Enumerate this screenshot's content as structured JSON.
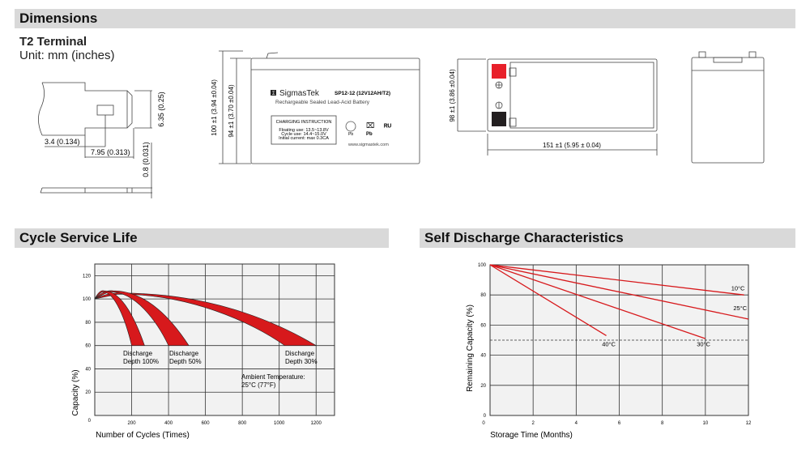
{
  "sections": {
    "dimensions": "Dimensions",
    "cycle": "Cycle Service Life",
    "self_discharge": "Self Discharge Characteristics"
  },
  "terminal": {
    "title": "T2 Terminal",
    "unit": "Unit: mm (inches)",
    "dim_635": "6.35 (0.25)",
    "dim_34": "3.4 (0.134)",
    "dim_795": "7.95 (0.313)",
    "dim_08": "0.8 (0.031)"
  },
  "battery_front": {
    "dim_100": "100 ±1 (3.94 ±0.04)",
    "dim_94": "94 ±1 (3.70 ±0.04)",
    "brand": "SigmasTek",
    "model": "SP12-12 (12V12AH/T2)",
    "subtitle": "Rechargeable Sealed Lead-Acid Battery",
    "charging_title": "CHARGING INSTRUCTION",
    "floating": "Floating use: 13.5~13.8V",
    "cycle_use": "Cycle use: 14.4~15.0V",
    "initial": "Initial current: max 0.3CA",
    "website": "www.sigmastek.com",
    "pb1": "Pb",
    "pb2": "Pb"
  },
  "battery_top": {
    "dim_98": "98 ±1 (3.86 ±0.04)",
    "dim_151": "151 ±1 (5.95 ± 0.04)",
    "positive_color": "#e8202a",
    "negative_color": "#231f20"
  },
  "chart_data": [
    {
      "type": "area",
      "title": "Cycle Service Life",
      "xlabel": "Number of Cycles (Times)",
      "ylabel": "Capacity (%)",
      "xticks": [
        "200",
        "400",
        "600",
        "800",
        "1000",
        "1200"
      ],
      "yticks": [
        "0",
        "20",
        "40",
        "60",
        "80",
        "100",
        "120"
      ],
      "xlim": [
        0,
        1300
      ],
      "ylim": [
        0,
        130
      ],
      "grid": true,
      "series": [
        {
          "name": "Discharge Depth 100%",
          "label": [
            "Discharge",
            "Depth 100%"
          ],
          "start": [
            0,
            100
          ],
          "peak": [
            50,
            107
          ],
          "end_range": [
            200,
            270
          ],
          "end_capacity": 60
        },
        {
          "name": "Discharge Depth 50%",
          "label": [
            "Discharge",
            "Depth 50%"
          ],
          "start": [
            0,
            100
          ],
          "peak": [
            100,
            107
          ],
          "end_range": [
            400,
            510
          ],
          "end_capacity": 60
        },
        {
          "name": "Discharge Depth 30%",
          "label": [
            "Discharge",
            "Depth 30%"
          ],
          "start": [
            0,
            100
          ],
          "peak": [
            150,
            105
          ],
          "end_range": [
            1030,
            1200
          ],
          "end_capacity": 60
        }
      ],
      "annotation": [
        "Ambient Temperature:",
        "25°C (77°F)"
      ],
      "color": "#d7191c"
    },
    {
      "type": "line",
      "title": "Self Discharge Characteristics",
      "xlabel": "Storage Time (Months)",
      "ylabel": "Remaining Capacity (%)",
      "xticks": [
        "0",
        "2",
        "4",
        "6",
        "8",
        "10",
        "12"
      ],
      "yticks": [
        "0",
        "20",
        "40",
        "60",
        "80",
        "100"
      ],
      "xlim": [
        0,
        12
      ],
      "ylim": [
        0,
        100
      ],
      "grid": true,
      "reference_line": 50,
      "series": [
        {
          "name": "10°C",
          "x": [
            0,
            11.8
          ],
          "y": [
            100,
            80
          ]
        },
        {
          "name": "25°C",
          "x": [
            0,
            12
          ],
          "y": [
            100,
            64
          ]
        },
        {
          "name": "30°C",
          "x": [
            0,
            10
          ],
          "y": [
            100,
            51
          ]
        },
        {
          "name": "40°C",
          "x": [
            0,
            5.4
          ],
          "y": [
            100,
            53
          ]
        }
      ],
      "color": "#d7191c"
    }
  ]
}
